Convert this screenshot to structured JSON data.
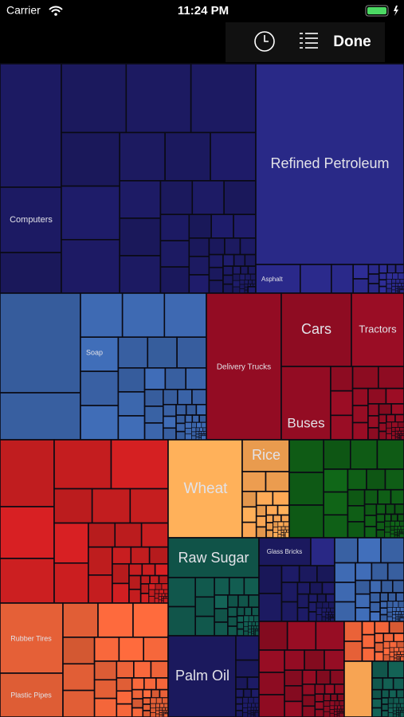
{
  "status_bar": {
    "carrier": "Carrier",
    "time": "11:24 PM"
  },
  "toolbar": {
    "done": "Done"
  },
  "treemap": {
    "labels": [
      "Computers",
      "Refined Petroleum",
      "Asphalt",
      "Soap",
      "Delivery Trucks",
      "Cars",
      "Tractors",
      "Buses",
      "Wheat",
      "Rice",
      "Raw Sugar",
      "Glass Bricks",
      "Rubber Tires",
      "Plastic Pipes",
      "Palm Oil"
    ]
  }
}
